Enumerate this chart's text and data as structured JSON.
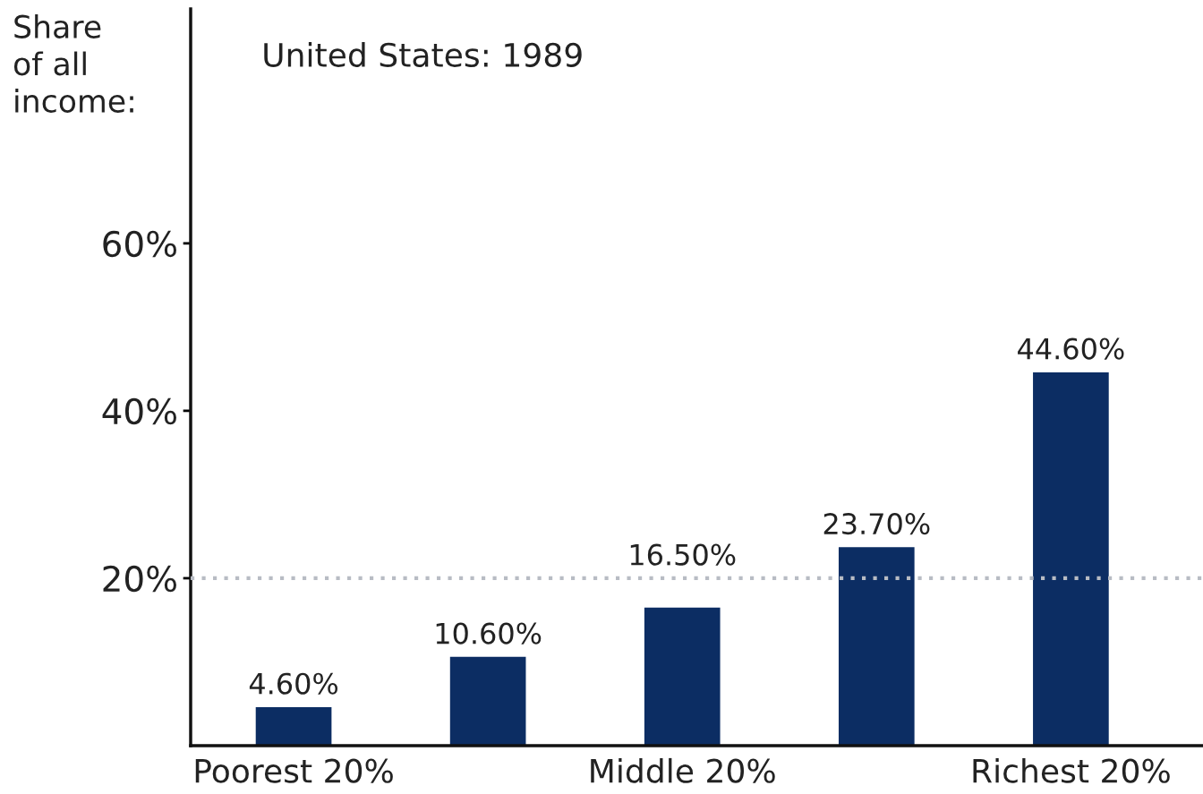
{
  "chart_data": {
    "type": "bar",
    "title": "United States: 1989",
    "ylabel": "Share\nof all\nincome:",
    "categories": [
      "Poorest 20%",
      null,
      "Middle 20%",
      null,
      "Richest 20%"
    ],
    "values": [
      4.6,
      10.6,
      16.5,
      23.7,
      44.6
    ],
    "color": "#0c2d63",
    "value_labels": [
      "4.60%",
      "10.60%",
      "16.50%",
      "23.70%",
      "44.60%"
    ],
    "ylim": [
      0,
      88
    ],
    "yticks": [
      {
        "value": 20,
        "label": "20%"
      },
      {
        "value": 40,
        "label": "40%"
      },
      {
        "value": 60,
        "label": "60%"
      }
    ],
    "ref_lines": [
      {
        "axis": "y",
        "value": 20,
        "color": "#b8bcc4",
        "line_style": "dotted"
      }
    ]
  }
}
